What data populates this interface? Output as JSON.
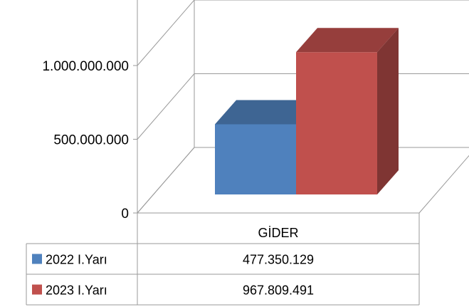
{
  "chart_data": {
    "type": "bar",
    "categories": [
      "GİDER"
    ],
    "series": [
      {
        "name": "2022 I.Yarı",
        "values": [
          477350129
        ],
        "color": "#4F81BD",
        "label": "477.350.129"
      },
      {
        "name": "2023 I.Yarı",
        "values": [
          967809491
        ],
        "color": "#C0504D",
        "label": "967.809.491"
      }
    ],
    "ylim": [
      0,
      1500000000
    ],
    "yticks": [
      0,
      500000000,
      1000000000
    ],
    "ytick_labels": [
      "0",
      "500.000.000",
      "1.000.000.000"
    ],
    "grid": true,
    "legend": "data-table"
  }
}
